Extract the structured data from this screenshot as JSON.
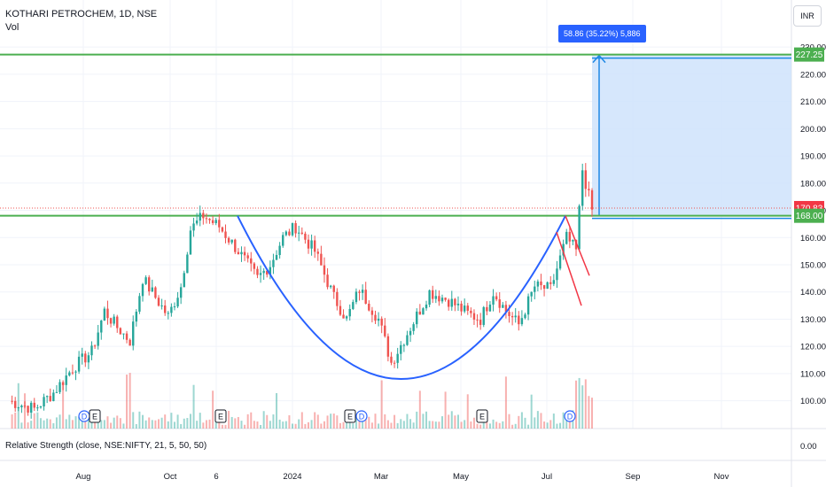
{
  "header": {
    "symbol_line": "KOTHARI PETROCHEM, 1D, NSE",
    "volume_label": "Vol",
    "currency_button": "INR",
    "indicator_label": "Relative Strength (close, NSE:NIFTY, 21, 5, 50, 50)",
    "indicator_value": "0.00"
  },
  "measure_label": "58.86 (35.22%) 5,886",
  "colors": {
    "up": "#26a69a",
    "down": "#ef5350",
    "breakout_line": "#4caf50",
    "cup_curve": "#2962ff",
    "handle_lines": "#f23645",
    "target_box": "#cfe3fb",
    "price_badge": "#f23645",
    "target_badge": "#4caf50"
  },
  "chart_data": {
    "type": "candlestick",
    "title": "KOTHARI PETROCHEM, 1D, NSE",
    "y_ticks": [
      100,
      110,
      120,
      130,
      140,
      150,
      160,
      170,
      180,
      190,
      200,
      210,
      220,
      230
    ],
    "ylim": [
      95,
      232
    ],
    "x_labels": [
      "Aug",
      "Oct",
      "6",
      "2024",
      "Mar",
      "May",
      "Jul",
      "Sep",
      "Nov"
    ],
    "breakout_level": 168.0,
    "target_level": 227.25,
    "last_price": 170.83,
    "target_label": "227.25",
    "last_price_label": "170.83",
    "breakout_label": "168.00",
    "measure": {
      "change": 58.86,
      "percent": 35.22,
      "points": 5886
    },
    "cup_pattern": {
      "left_rim": 168,
      "bottom": 108,
      "right_rim": 168
    },
    "price_path_keypoints": [
      [
        0,
        100
      ],
      [
        8,
        97
      ],
      [
        14,
        103
      ],
      [
        20,
        112
      ],
      [
        26,
        118
      ],
      [
        30,
        133
      ],
      [
        34,
        127
      ],
      [
        38,
        122
      ],
      [
        42,
        145
      ],
      [
        46,
        138
      ],
      [
        50,
        131
      ],
      [
        54,
        142
      ],
      [
        57,
        163
      ],
      [
        61,
        168
      ],
      [
        66,
        164
      ],
      [
        72,
        155
      ],
      [
        78,
        145
      ],
      [
        82,
        150
      ],
      [
        86,
        160
      ],
      [
        90,
        164
      ],
      [
        96,
        155
      ],
      [
        102,
        138
      ],
      [
        106,
        130
      ],
      [
        110,
        141
      ],
      [
        116,
        130
      ],
      [
        120,
        114
      ],
      [
        126,
        127
      ],
      [
        132,
        140
      ],
      [
        138,
        137
      ],
      [
        144,
        132
      ],
      [
        148,
        130
      ],
      [
        152,
        140
      ],
      [
        156,
        133
      ],
      [
        160,
        128
      ],
      [
        165,
        142
      ],
      [
        170,
        141
      ],
      [
        175,
        160
      ],
      [
        178,
        155
      ],
      [
        180,
        185
      ],
      [
        183,
        170
      ]
    ],
    "event_markers": [
      {
        "label": "D"
      },
      {
        "label": "E"
      },
      {
        "label": "E"
      },
      {
        "label": "E"
      },
      {
        "label": "D"
      },
      {
        "label": "E"
      },
      {
        "label": "D"
      }
    ]
  }
}
